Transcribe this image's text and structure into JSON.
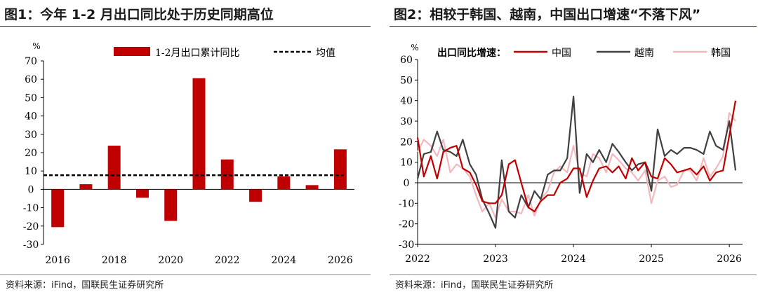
{
  "left": {
    "title": "图1：今年 1-2 月出口同比处于历史同期高位",
    "source": "资料来源：iFind，国联民生证券研究所",
    "unit": "%",
    "colors": {
      "bar": "#c00000",
      "avg": "#000000"
    },
    "chart_data": {
      "type": "bar",
      "title": "图1：今年 1-2 月出口同比处于历史同期高位",
      "ylabel": "%",
      "ylim": [
        -30,
        70
      ],
      "yticks": [
        -30,
        -20,
        -10,
        0,
        10,
        20,
        30,
        40,
        50,
        60,
        70
      ],
      "categories": [
        "2016",
        "2017",
        "2018",
        "2019",
        "2020",
        "2021",
        "2022",
        "2023",
        "2024",
        "2025",
        "2026"
      ],
      "xtick_labels": [
        "2016",
        "2018",
        "2020",
        "2022",
        "2024",
        "2026"
      ],
      "series": [
        {
          "name": "1-2月出口累计同比",
          "values": [
            -20.6,
            2.8,
            23.8,
            -4.6,
            -17.2,
            60.6,
            16.3,
            -6.8,
            7.1,
            2.3,
            21.8
          ]
        }
      ],
      "average": {
        "name": "均值",
        "value": 7.7
      },
      "legend": [
        "1-2月出口累计同比",
        "均值"
      ]
    }
  },
  "right": {
    "title": "图2：相较于韩国、越南，中国出口增速“不落下风”",
    "source": "资料来源：iFind，国联民生证券研究所",
    "unit": "%",
    "legend_title": "出口同比增速：",
    "colors": {
      "中国": "#c00000",
      "越南": "#404040",
      "韩国": "#f2b8be"
    },
    "chart_data": {
      "type": "line",
      "title": "图2：相较于韩国、越南，中国出口增速“不落下风”",
      "ylabel": "%",
      "ylim": [
        -30,
        60
      ],
      "yticks": [
        -30,
        -20,
        -10,
        0,
        10,
        20,
        30,
        40,
        50,
        60
      ],
      "xlim": [
        2022.0,
        2026.17
      ],
      "xtick_labels": [
        "2022",
        "2023",
        "2024",
        "2025",
        "2026"
      ],
      "legend": [
        "中国",
        "越南",
        "韩国"
      ],
      "series": [
        {
          "name": "中国",
          "x": [
            2022.0,
            2022.08,
            2022.17,
            2022.25,
            2022.33,
            2022.42,
            2022.5,
            2022.58,
            2022.67,
            2022.75,
            2022.83,
            2022.92,
            2023.0,
            2023.08,
            2023.17,
            2023.25,
            2023.33,
            2023.42,
            2023.5,
            2023.58,
            2023.67,
            2023.75,
            2023.83,
            2023.92,
            2024.0,
            2024.08,
            2024.17,
            2024.25,
            2024.33,
            2024.42,
            2024.5,
            2024.58,
            2024.67,
            2024.75,
            2024.83,
            2024.92,
            2025.0,
            2025.08,
            2025.17,
            2025.25,
            2025.33,
            2025.42,
            2025.5,
            2025.58,
            2025.67,
            2025.75,
            2025.83,
            2025.92,
            2026.08
          ],
          "values": [
            22,
            3,
            13,
            2,
            15,
            17,
            18,
            7,
            5,
            -1,
            -9,
            -10,
            -10,
            -6,
            9,
            11,
            0,
            -12,
            -14,
            -9,
            -6,
            -6,
            0,
            2,
            7,
            7,
            -7,
            1,
            7,
            8,
            5,
            8,
            2,
            12,
            6,
            10,
            3,
            2,
            12,
            9,
            5,
            6,
            7,
            4,
            8,
            1,
            5,
            6,
            40
          ]
        },
        {
          "name": "越南",
          "x": [
            2022.0,
            2022.08,
            2022.17,
            2022.25,
            2022.33,
            2022.42,
            2022.5,
            2022.58,
            2022.67,
            2022.75,
            2022.83,
            2022.92,
            2023.0,
            2023.08,
            2023.17,
            2023.25,
            2023.33,
            2023.42,
            2023.5,
            2023.58,
            2023.67,
            2023.75,
            2023.83,
            2023.92,
            2024.0,
            2024.08,
            2024.17,
            2024.25,
            2024.33,
            2024.42,
            2024.5,
            2024.58,
            2024.67,
            2024.75,
            2024.83,
            2024.92,
            2025.0,
            2025.08,
            2025.17,
            2025.25,
            2025.33,
            2025.42,
            2025.5,
            2025.58,
            2025.67,
            2025.75,
            2025.83,
            2025.92,
            2026.0,
            2026.08
          ],
          "values": [
            2,
            14,
            15,
            25,
            16,
            15,
            13,
            21,
            9,
            4,
            -8,
            -15,
            -22,
            11,
            -14,
            -17,
            -6,
            -12,
            -4,
            -8,
            4,
            6,
            6,
            12,
            42,
            -5,
            14,
            10,
            16,
            10,
            19,
            15,
            10,
            6,
            9,
            10,
            -4,
            26,
            13,
            16,
            14,
            17,
            17,
            16,
            14,
            25,
            18,
            16,
            30,
            6
          ]
        },
        {
          "name": "韩国",
          "x": [
            2022.0,
            2022.08,
            2022.17,
            2022.25,
            2022.33,
            2022.42,
            2022.5,
            2022.58,
            2022.67,
            2022.75,
            2022.83,
            2022.92,
            2023.0,
            2023.08,
            2023.17,
            2023.25,
            2023.33,
            2023.42,
            2023.5,
            2023.58,
            2023.67,
            2023.75,
            2023.83,
            2023.92,
            2024.0,
            2024.08,
            2024.17,
            2024.25,
            2024.33,
            2024.42,
            2024.5,
            2024.58,
            2024.67,
            2024.75,
            2024.83,
            2024.92,
            2025.0,
            2025.08,
            2025.17,
            2025.25,
            2025.33,
            2025.42,
            2025.5,
            2025.58,
            2025.67,
            2025.75,
            2025.83,
            2025.92,
            2026.0,
            2026.08
          ],
          "values": [
            15,
            21,
            18,
            13,
            21,
            5,
            9,
            7,
            3,
            -6,
            -14,
            -10,
            -17,
            -8,
            -14,
            -14,
            -15,
            -6,
            -16,
            -8,
            -4,
            5,
            8,
            5,
            18,
            5,
            3,
            14,
            12,
            5,
            14,
            11,
            7,
            5,
            1,
            6,
            -10,
            1,
            3,
            -2,
            -1,
            6,
            6,
            1,
            12,
            3,
            7,
            13,
            34,
            30
          ]
        }
      ]
    }
  }
}
